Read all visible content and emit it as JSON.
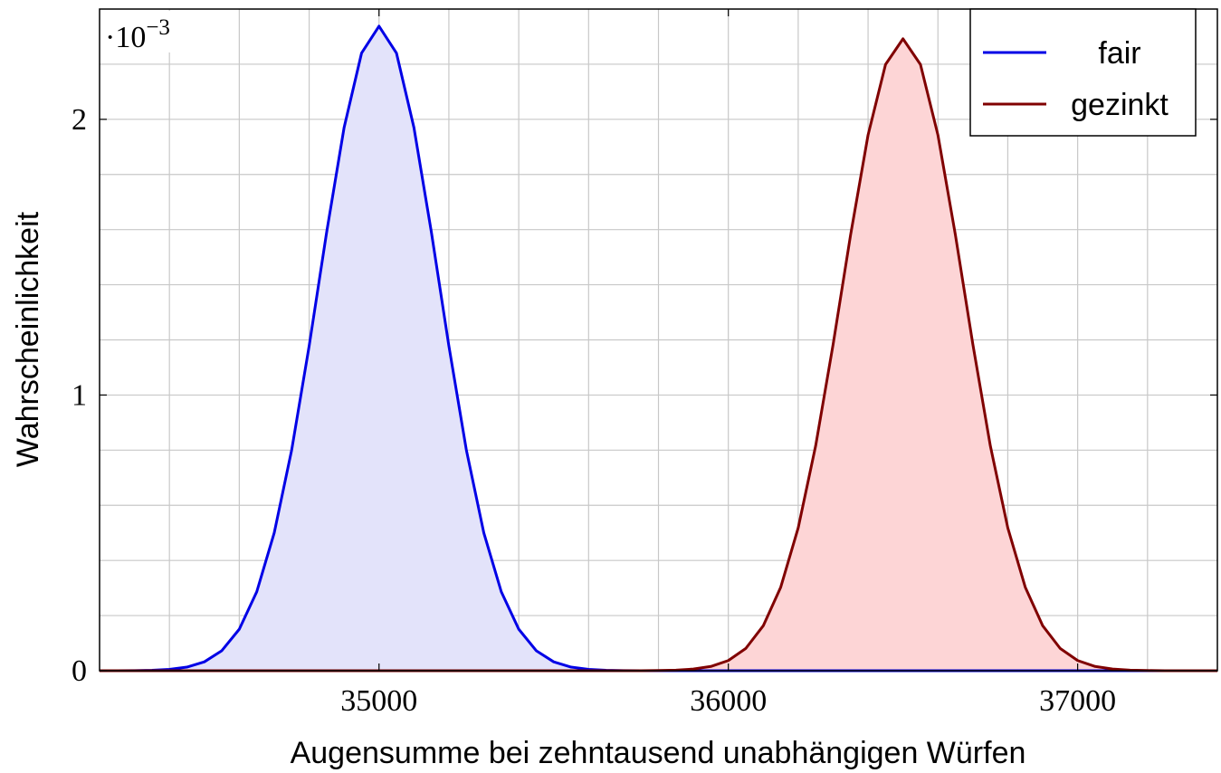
{
  "chart_data": {
    "type": "line",
    "xlabel": "Augensumme bei zehntausend unabhängigen Würfen",
    "ylabel": "Wahrscheinlichkeit",
    "y_scale_label": "·10",
    "y_scale_exponent": "−3",
    "x": [
      34200,
      34250,
      34300,
      34350,
      34400,
      34450,
      34500,
      34550,
      34600,
      34650,
      34700,
      34750,
      34800,
      34850,
      34900,
      34950,
      35000,
      35050,
      35100,
      35150,
      35200,
      35250,
      35300,
      35350,
      35400,
      35450,
      35500,
      35550,
      35600,
      35650,
      35700,
      35750,
      35800,
      35850,
      35900,
      35950,
      36000,
      36050,
      36100,
      36150,
      36200,
      36250,
      36300,
      36350,
      36400,
      36450,
      36500,
      36550,
      36600,
      36650,
      36700,
      36750,
      36800,
      36850,
      36900,
      36950,
      37000,
      37050,
      37100,
      37150,
      37200,
      37250,
      37300,
      37350,
      37400
    ],
    "series": [
      {
        "name": "fair",
        "color": "#0000e6",
        "fill": "#e3e3fa",
        "values": [
          0,
          0,
          5e-07,
          1.7e-06,
          4.9e-06,
          1.31e-05,
          3.22e-05,
          7.27e-05,
          0.0001506,
          0.0002865,
          0.0005,
          0.000801,
          0.001178,
          0.00159,
          0.00197,
          0.00224,
          0.002338,
          0.00224,
          0.00197,
          0.00159,
          0.001178,
          0.000801,
          0.0005,
          0.0002865,
          0.0001506,
          7.27e-05,
          3.22e-05,
          1.31e-05,
          4.9e-06,
          1.7e-06,
          5e-07,
          0,
          0,
          0,
          0,
          0,
          0,
          0,
          0,
          0,
          0,
          0,
          0,
          0,
          0,
          0,
          0,
          0,
          0,
          0,
          0,
          0,
          0,
          0,
          0,
          0,
          0,
          0,
          0,
          0,
          0,
          0,
          0,
          0,
          0
        ]
      },
      {
        "name": "gezinkt",
        "color": "#800000",
        "fill": "#fdd5d6",
        "values": [
          0,
          0,
          0,
          0,
          0,
          0,
          0,
          0,
          0,
          0,
          0,
          0,
          0,
          0,
          0,
          0,
          0,
          0,
          0,
          0,
          0,
          0,
          0,
          0,
          0,
          0,
          0,
          0,
          0,
          0,
          0,
          2e-07,
          7e-07,
          2.1e-06,
          6e-06,
          1.55e-05,
          3.69e-05,
          8.09e-05,
          0.000163,
          0.000303,
          0.000518,
          0.000816,
          0.001184,
          0.001581,
          0.001943,
          0.002199,
          0.002292,
          0.002199,
          0.001943,
          0.001581,
          0.001184,
          0.000816,
          0.000518,
          0.000303,
          0.000163,
          8.09e-05,
          3.69e-05,
          1.55e-05,
          6e-06,
          2.1e-06,
          7e-07,
          2e-07,
          0,
          0,
          0
        ]
      }
    ],
    "xlim": [
      34200,
      37400
    ],
    "ylim": [
      0,
      0.0024
    ],
    "xticks": [
      35000,
      36000,
      37000
    ],
    "yticks": [
      0,
      {
        "value": 0.001,
        "label": "1"
      },
      {
        "value": 0.002,
        "label": "2"
      }
    ],
    "xgrid": [
      34400,
      34600,
      34800,
      35000,
      35200,
      35400,
      35600,
      35800,
      36000,
      36200,
      36400,
      36600,
      36800,
      37000,
      37200
    ],
    "ygrid": [
      0.0002,
      0.0004,
      0.0006,
      0.0008,
      0.001,
      0.0012,
      0.0014,
      0.0016,
      0.0018,
      0.002,
      0.0022
    ],
    "grid": true,
    "legend": "top-right"
  }
}
